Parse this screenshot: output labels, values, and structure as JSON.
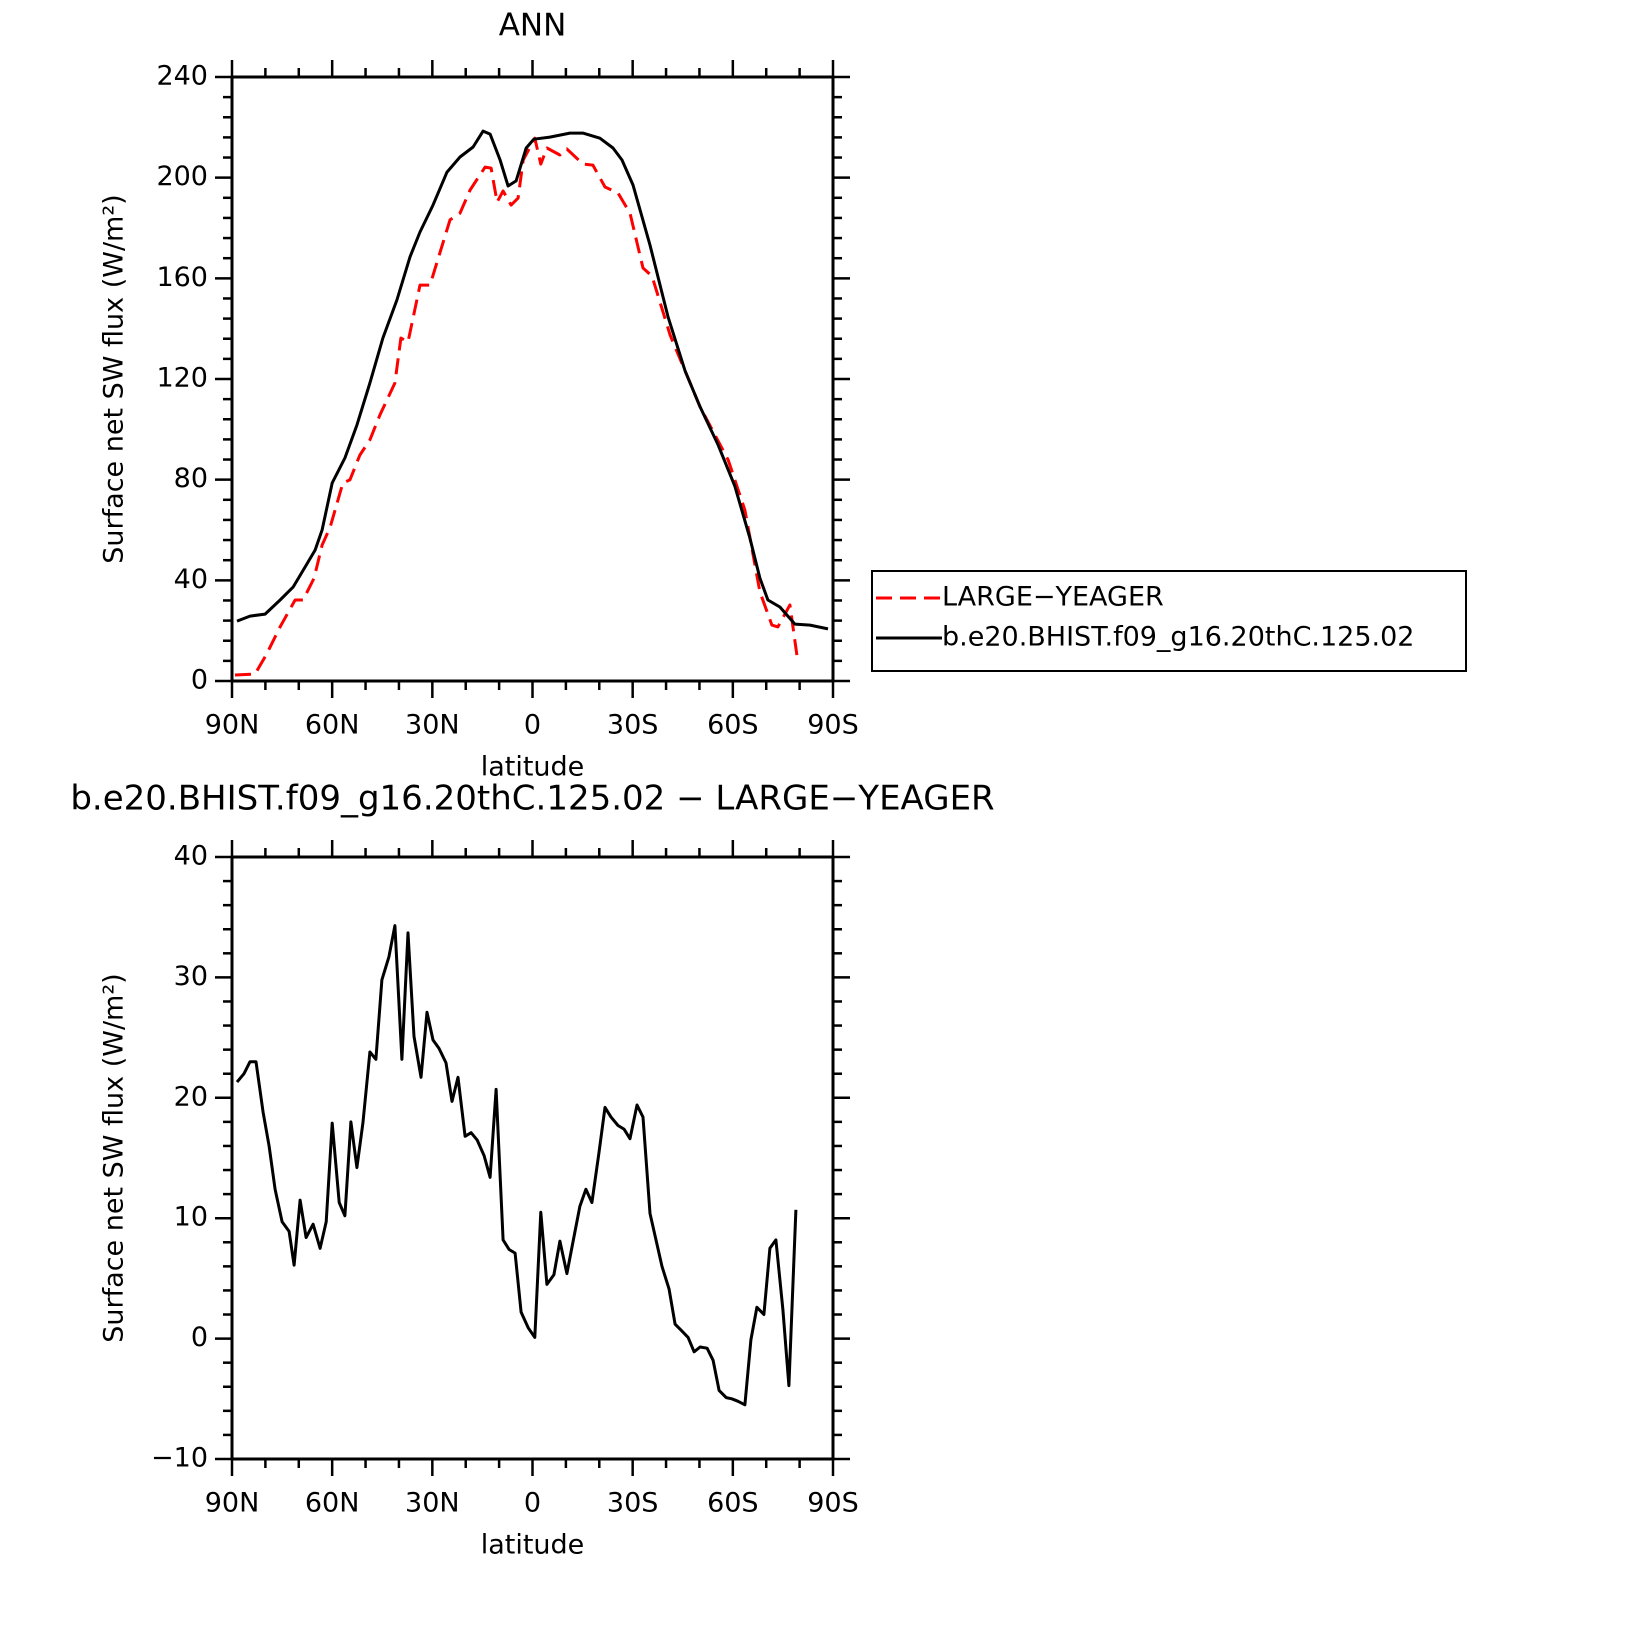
{
  "chart_data": [
    {
      "type": "line",
      "title": "ANN",
      "xlabel": "latitude",
      "ylabel": "Surface net SW flux (W/m²)",
      "xlim": [
        90,
        -90
      ],
      "ylim": [
        0,
        240
      ],
      "xticks": [
        {
          "value": 90,
          "label": "90N"
        },
        {
          "value": 60,
          "label": "60N"
        },
        {
          "value": 30,
          "label": "30N"
        },
        0,
        {
          "value": -30,
          "label": "30S"
        },
        {
          "value": -60,
          "label": "60S"
        },
        {
          "value": -90,
          "label": "90S"
        }
      ],
      "yticks": [
        0,
        40,
        80,
        120,
        160,
        200,
        240
      ],
      "legend": "right",
      "series": [
        {
          "name": "LARGE−YEAGER",
          "color": "#ff0000",
          "line_style": "dashed",
          "x": [
            89.1,
            83.1,
            79.8,
            75.6,
            71.1,
            68.7,
            65.4,
            63,
            60.6,
            56.8,
            54.7,
            51.7,
            48.7,
            45.7,
            41.2,
            39.4,
            37.3,
            33.7,
            30.7,
            24.7,
            21.7,
            18.7,
            14.2,
            12.4,
            10.6,
            8.8,
            6.4,
            4.3,
            2.8,
            -0.7,
            -2.5,
            -4.3,
            -8.2,
            -10.3,
            -15.1,
            -18.1,
            -21.7,
            -25.6,
            -29.2,
            -33.1,
            -35.8,
            -41.2,
            -50.2,
            -55.6,
            -58.6,
            -63.6,
            -68.1,
            -71.7,
            -73.5,
            -77.1,
            -79.2
          ],
          "values": [
            2.4,
            2.8,
            10.3,
            21.5,
            32.2,
            32.2,
            40.9,
            54,
            61.2,
            78.7,
            79.9,
            89.8,
            95.8,
            105.7,
            118.4,
            136.3,
            134.7,
            157.3,
            157.3,
            183.2,
            185.9,
            195.1,
            204.2,
            203.8,
            190.3,
            194.7,
            189.1,
            191.9,
            207,
            215.7,
            205.4,
            211.8,
            209,
            211.4,
            205.4,
            205,
            196.3,
            193.9,
            185.9,
            164.1,
            160.9,
            137.5,
            108.9,
            95.4,
            87.8,
            67.9,
            35.4,
            22.2,
            21.5,
            30.2,
            10.3
          ]
        },
        {
          "name": "b.e20.BHIST.f09_g16.20thC.125.02",
          "color": "#000000",
          "line_style": "solid",
          "x": [
            88.5,
            84.6,
            80.1,
            75.6,
            71.7,
            68.1,
            65.1,
            63,
            60,
            56.2,
            52.6,
            48.7,
            44.8,
            40.6,
            36.7,
            33.7,
            29.8,
            25.6,
            21.7,
            17.8,
            14.8,
            12.7,
            9.7,
            7.3,
            4.9,
            1.9,
            -0.4,
            -5.2,
            -11.2,
            -15.1,
            -20.2,
            -24.1,
            -26.8,
            -30.1,
            -35.2,
            -40.6,
            -45.7,
            -50.2,
            -55.6,
            -60.6,
            -65.1,
            -68.1,
            -70.5,
            -74.1,
            -78.6,
            -83.1,
            -88.5
          ],
          "values": [
            23.8,
            25.8,
            26.6,
            32.2,
            37.3,
            45.3,
            52,
            60,
            78.7,
            88.6,
            101.7,
            118.4,
            136.3,
            151.4,
            168.5,
            178.4,
            189.1,
            202.2,
            208.2,
            212.2,
            218.5,
            217.3,
            207,
            196.7,
            198.7,
            211.8,
            215.3,
            216.1,
            217.7,
            217.7,
            215.7,
            211.8,
            207,
            197.1,
            173.2,
            144.6,
            123.2,
            108.9,
            93.8,
            77.5,
            56.8,
            40.9,
            32.2,
            29.4,
            22.6,
            22.2,
            20.7
          ]
        }
      ]
    },
    {
      "type": "line",
      "title": "b.e20.BHIST.f09_g16.20thC.125.02 − LARGE−YEAGER",
      "xlabel": "latitude",
      "ylabel": "Surface net SW flux (W/m²)",
      "xlim": [
        90,
        -90
      ],
      "ylim": [
        -10,
        40
      ],
      "xticks": [
        {
          "value": 90,
          "label": "90N"
        },
        {
          "value": 60,
          "label": "60N"
        },
        {
          "value": 30,
          "label": "30N"
        },
        0,
        {
          "value": -30,
          "label": "30S"
        },
        {
          "value": -60,
          "label": "60S"
        },
        {
          "value": -90,
          "label": "90S"
        }
      ],
      "yticks": [
        {
          "value": -10,
          "label": "−10"
        },
        0,
        10,
        20,
        30,
        40
      ],
      "color": "#000000",
      "x": [
        88.5,
        86.4,
        84.6,
        82.8,
        80.7,
        78.9,
        77.1,
        75,
        72.9,
        71.4,
        69.6,
        67.8,
        65.7,
        63.6,
        61.8,
        60,
        57.9,
        56.2,
        54.4,
        52.6,
        50.8,
        48.7,
        46.9,
        45.1,
        43,
        41.2,
        39.1,
        37.3,
        35.5,
        33.4,
        31.6,
        29.8,
        28,
        25.9,
        24.1,
        22.3,
        20.2,
        18.4,
        16.6,
        14.5,
        12.7,
        10.9,
        8.8,
        7,
        5.2,
        3.4,
        1.3,
        -0.7,
        -2.5,
        -4.3,
        -6.4,
        -8.2,
        -10.3,
        -12.1,
        -14.2,
        -16,
        -17.8,
        -19.9,
        -21.7,
        -23.5,
        -25.6,
        -27.4,
        -29.2,
        -31.3,
        -33.1,
        -35.2,
        -37,
        -38.8,
        -40.9,
        -42.7,
        -44.5,
        -46.6,
        -48.4,
        -50.2,
        -52.3,
        -54.1,
        -55.9,
        -58,
        -59.7,
        -61.5,
        -63.6,
        -65.4,
        -67.2,
        -69.3,
        -71.1,
        -72.9,
        -75,
        -76.8,
        -78.9
      ],
      "values": [
        21.3,
        22,
        23,
        23,
        18.8,
        16,
        12.4,
        9.7,
        8.9,
        6.1,
        11.5,
        8.4,
        9.5,
        7.5,
        9.7,
        17.9,
        11.3,
        10.2,
        18,
        14.2,
        17.9,
        23.8,
        23.2,
        29.8,
        31.7,
        34.3,
        23.2,
        33.7,
        25.1,
        21.7,
        27.1,
        24.8,
        24.1,
        22.9,
        19.7,
        21.7,
        16.8,
        17.1,
        16.5,
        15.2,
        13.4,
        20.7,
        8.2,
        7.4,
        7.1,
        2.2,
        0.9,
        0.1,
        10.5,
        4.5,
        5.3,
        8.1,
        5.4,
        8,
        11,
        12.4,
        11.3,
        15.4,
        19.2,
        18.4,
        17.7,
        17.4,
        16.6,
        19.4,
        18.4,
        10.4,
        8.2,
        6,
        4.1,
        1.2,
        0.7,
        0.1,
        -1.1,
        -0.7,
        -0.8,
        -1.8,
        -4.3,
        -4.9,
        -5,
        -5.2,
        -5.5,
        -0.1,
        2.6,
        2,
        7.5,
        8.2,
        2.4,
        -3.9,
        10.7
      ]
    }
  ]
}
